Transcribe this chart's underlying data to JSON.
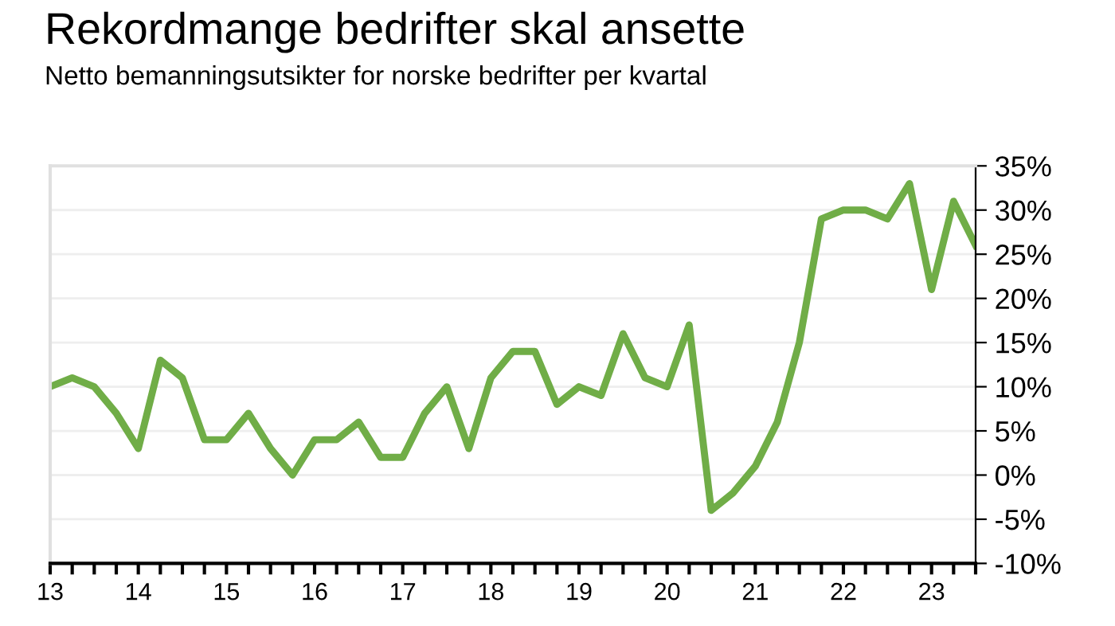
{
  "chart_data": {
    "type": "line",
    "title": "Rekordmange bedrifter skal ansette",
    "subtitle": "Netto bemanningsutsikter for norske bedrifter per kvartal",
    "x": [
      2013,
      2013.25,
      2013.5,
      2013.75,
      2014,
      2014.25,
      2014.5,
      2014.75,
      2015,
      2015.25,
      2015.5,
      2015.75,
      2016,
      2016.25,
      2016.5,
      2016.75,
      2017,
      2017.25,
      2017.5,
      2017.75,
      2018,
      2018.25,
      2018.5,
      2018.75,
      2019,
      2019.25,
      2019.5,
      2019.75,
      2020,
      2020.25,
      2020.5,
      2020.75,
      2021,
      2021.25,
      2021.5,
      2021.75,
      2022,
      2022.25,
      2022.5,
      2022.75,
      2023,
      2023.25,
      2023.5
    ],
    "series": [
      {
        "color": "#70ad47",
        "values": [
          10,
          11,
          10,
          7,
          3,
          13,
          11,
          4,
          4,
          7,
          3,
          0,
          4,
          4,
          6,
          2,
          2,
          7,
          10,
          3,
          11,
          14,
          14,
          8,
          10,
          9,
          16,
          11,
          10,
          17,
          -4,
          -2,
          1,
          6,
          15,
          29,
          30,
          30,
          29,
          33,
          21,
          31,
          26
        ]
      }
    ],
    "xlim": [
      2013,
      2023.5
    ],
    "xticks": [
      {
        "value": 2013,
        "label": "13"
      },
      {
        "value": 2013.25,
        "label": null
      },
      {
        "value": 2013.5,
        "label": null
      },
      {
        "value": 2013.75,
        "label": null
      },
      {
        "value": 2014,
        "label": "14"
      },
      {
        "value": 2014.25,
        "label": null
      },
      {
        "value": 2014.5,
        "label": null
      },
      {
        "value": 2014.75,
        "label": null
      },
      {
        "value": 2015,
        "label": "15"
      },
      {
        "value": 2015.25,
        "label": null
      },
      {
        "value": 2015.5,
        "label": null
      },
      {
        "value": 2015.75,
        "label": null
      },
      {
        "value": 2016,
        "label": "16"
      },
      {
        "value": 2016.25,
        "label": null
      },
      {
        "value": 2016.5,
        "label": null
      },
      {
        "value": 2016.75,
        "label": null
      },
      {
        "value": 2017,
        "label": "17"
      },
      {
        "value": 2017.25,
        "label": null
      },
      {
        "value": 2017.5,
        "label": null
      },
      {
        "value": 2017.75,
        "label": null
      },
      {
        "value": 2018,
        "label": "18"
      },
      {
        "value": 2018.25,
        "label": null
      },
      {
        "value": 2018.5,
        "label": null
      },
      {
        "value": 2018.75,
        "label": null
      },
      {
        "value": 2019,
        "label": "19"
      },
      {
        "value": 2019.25,
        "label": null
      },
      {
        "value": 2019.5,
        "label": null
      },
      {
        "value": 2019.75,
        "label": null
      },
      {
        "value": 2020,
        "label": "20"
      },
      {
        "value": 2020.25,
        "label": null
      },
      {
        "value": 2020.5,
        "label": null
      },
      {
        "value": 2020.75,
        "label": null
      },
      {
        "value": 2021,
        "label": "21"
      },
      {
        "value": 2021.25,
        "label": null
      },
      {
        "value": 2021.5,
        "label": null
      },
      {
        "value": 2021.75,
        "label": null
      },
      {
        "value": 2022,
        "label": "22"
      },
      {
        "value": 2022.25,
        "label": null
      },
      {
        "value": 2022.5,
        "label": null
      },
      {
        "value": 2022.75,
        "label": null
      },
      {
        "value": 2023,
        "label": "23"
      },
      {
        "value": 2023.25,
        "label": null
      },
      {
        "value": 2023.5,
        "label": null
      }
    ],
    "ylim": [
      -10,
      35
    ],
    "yticks": [
      {
        "value": -10,
        "label": "-10%"
      },
      {
        "value": -5,
        "label": "-5%"
      },
      {
        "value": 0,
        "label": "0%"
      },
      {
        "value": 5,
        "label": "5%"
      },
      {
        "value": 10,
        "label": "10%"
      },
      {
        "value": 15,
        "label": "15%"
      },
      {
        "value": 20,
        "label": "20%"
      },
      {
        "value": 25,
        "label": "25%"
      },
      {
        "value": 30,
        "label": "30%"
      },
      {
        "value": 35,
        "label": "35%"
      }
    ],
    "grid": "y",
    "legend": false,
    "marker": "none",
    "line_style": "solid"
  }
}
